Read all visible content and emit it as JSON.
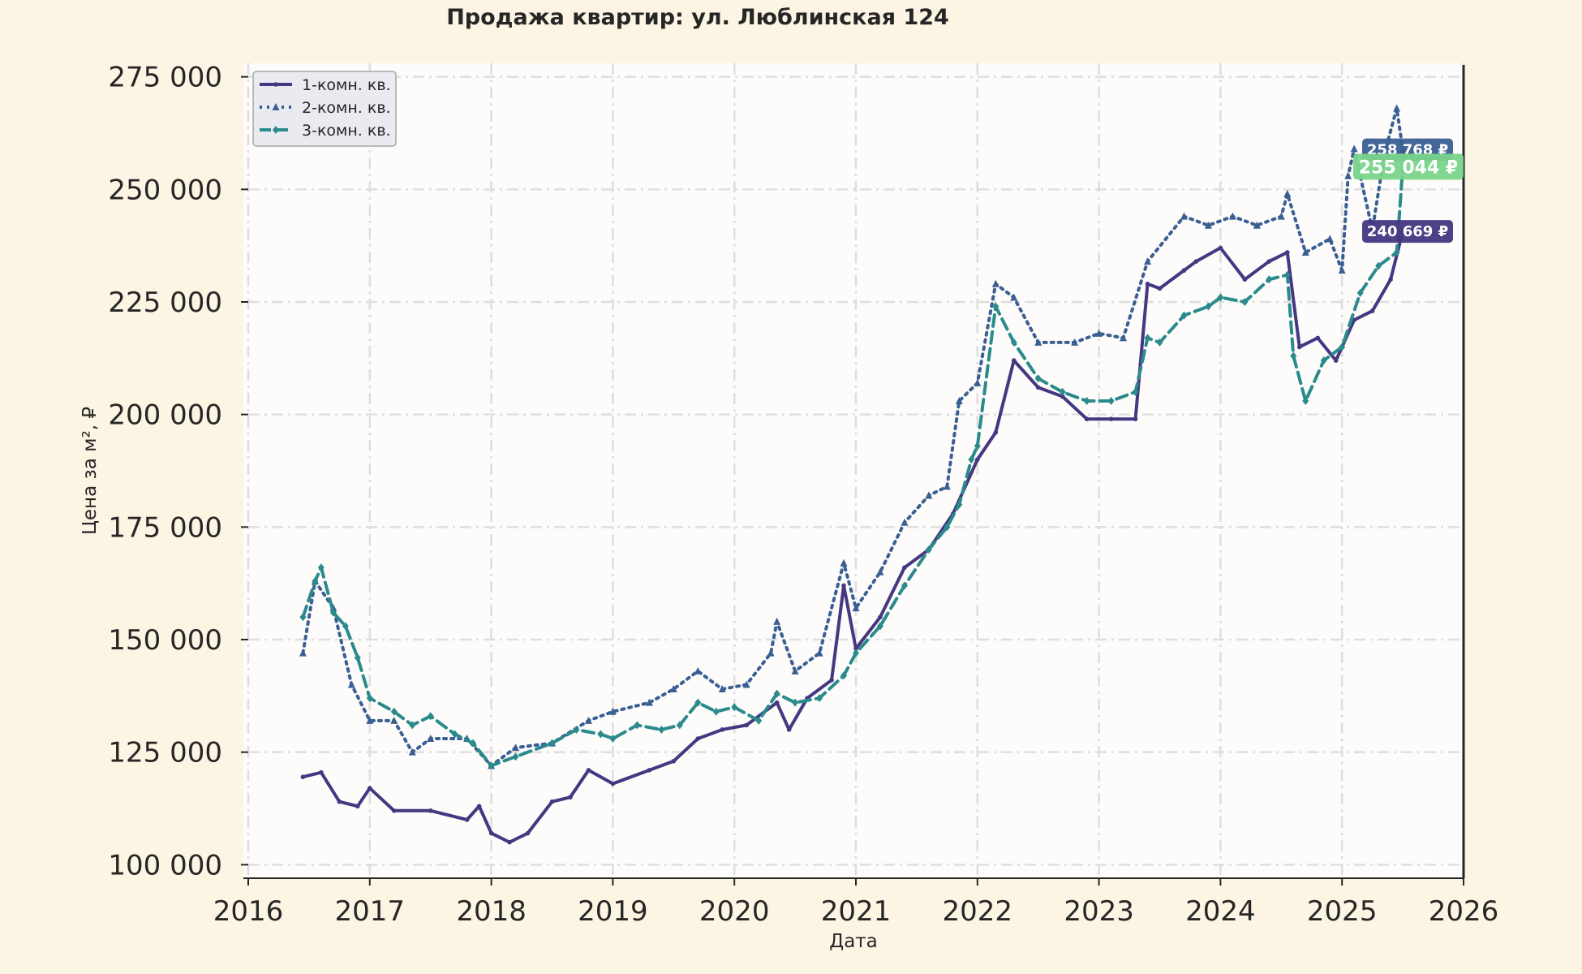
{
  "chart_data": {
    "type": "line",
    "title": "Продажа квартир: ул. Люблинская 124",
    "xlabel": "Дата",
    "ylabel": "Цена за м², ₽",
    "xlim": [
      2016.0,
      2026.0
    ],
    "ylim": [
      97000,
      278000
    ],
    "x_ticks": [
      "2016",
      "2017",
      "2018",
      "2019",
      "2020",
      "2021",
      "2022",
      "2023",
      "2024",
      "2025",
      "2026"
    ],
    "y_ticks": [
      "100 000",
      "125 000",
      "150 000",
      "175 000",
      "200 000",
      "225 000",
      "250 000",
      "275 000"
    ],
    "grid": true,
    "legend_position": "top-left",
    "series": [
      {
        "name": "1-комн. кв.",
        "color": "#453781",
        "line_style": "solid",
        "marker": "star",
        "end_label": "240 669 ₽",
        "x": [
          2016.45,
          2016.6,
          2016.75,
          2016.9,
          2017.0,
          2017.2,
          2017.5,
          2017.8,
          2017.9,
          2018.0,
          2018.15,
          2018.3,
          2018.5,
          2018.65,
          2018.8,
          2019.0,
          2019.3,
          2019.5,
          2019.7,
          2019.9,
          2020.1,
          2020.35,
          2020.45,
          2020.6,
          2020.8,
          2020.9,
          2021.0,
          2021.2,
          2021.4,
          2021.6,
          2021.8,
          2022.0,
          2022.15,
          2022.3,
          2022.5,
          2022.7,
          2022.9,
          2023.1,
          2023.3,
          2023.4,
          2023.5,
          2023.7,
          2023.8,
          2024.0,
          2024.2,
          2024.4,
          2024.55,
          2024.65,
          2024.8,
          2024.95,
          2025.1,
          2025.25,
          2025.4,
          2025.5
        ],
        "y": [
          119500,
          120500,
          114000,
          113000,
          117000,
          112000,
          112000,
          110000,
          113000,
          107000,
          105000,
          107000,
          114000,
          115000,
          121000,
          118000,
          121000,
          123000,
          128000,
          130000,
          131000,
          136000,
          130000,
          137000,
          141000,
          162000,
          148000,
          155000,
          166000,
          170000,
          178000,
          190000,
          196000,
          212000,
          206000,
          204000,
          199000,
          199000,
          199000,
          229000,
          228000,
          232000,
          234000,
          237000,
          230000,
          234000,
          236000,
          215000,
          217000,
          212000,
          221000,
          223000,
          230000,
          240669
        ]
      },
      {
        "name": "2-комн. кв.",
        "color": "#3a5f93",
        "line_style": "dotted",
        "marker": "triangle",
        "end_label": "258 768 ₽",
        "x": [
          2016.45,
          2016.55,
          2016.7,
          2016.85,
          2017.0,
          2017.2,
          2017.35,
          2017.5,
          2017.8,
          2018.0,
          2018.2,
          2018.5,
          2018.8,
          2019.0,
          2019.3,
          2019.5,
          2019.7,
          2019.9,
          2020.1,
          2020.3,
          2020.35,
          2020.5,
          2020.7,
          2020.9,
          2021.0,
          2021.2,
          2021.4,
          2021.6,
          2021.75,
          2021.85,
          2022.0,
          2022.15,
          2022.3,
          2022.5,
          2022.8,
          2023.0,
          2023.2,
          2023.4,
          2023.7,
          2023.9,
          2024.1,
          2024.3,
          2024.5,
          2024.55,
          2024.7,
          2024.9,
          2025.0,
          2025.05,
          2025.1,
          2025.25,
          2025.35,
          2025.45,
          2025.5
        ],
        "y": [
          147000,
          163000,
          157000,
          140000,
          132000,
          132000,
          125000,
          128000,
          128000,
          122000,
          126000,
          127000,
          132000,
          134000,
          136000,
          139000,
          143000,
          139000,
          140000,
          147000,
          154000,
          143000,
          147000,
          167000,
          157000,
          165000,
          176000,
          182000,
          184000,
          203000,
          207000,
          229000,
          226000,
          216000,
          216000,
          218000,
          217000,
          234000,
          244000,
          242000,
          244000,
          242000,
          244000,
          249000,
          236000,
          239000,
          232000,
          253000,
          259000,
          241000,
          258000,
          268000,
          258768
        ]
      },
      {
        "name": "3-комн. кв.",
        "color": "#2a8a8c",
        "line_style": "dashed",
        "marker": "diamond",
        "end_label": "255 044 ₽",
        "end_label_bg": "#7ad48a",
        "x": [
          2016.45,
          2016.55,
          2016.6,
          2016.7,
          2016.8,
          2016.9,
          2017.0,
          2017.2,
          2017.35,
          2017.5,
          2017.7,
          2017.85,
          2018.0,
          2018.2,
          2018.5,
          2018.7,
          2018.9,
          2019.0,
          2019.2,
          2019.4,
          2019.55,
          2019.7,
          2019.85,
          2020.0,
          2020.2,
          2020.35,
          2020.5,
          2020.7,
          2020.9,
          2021.0,
          2021.2,
          2021.4,
          2021.6,
          2021.75,
          2021.85,
          2021.95,
          2022.0,
          2022.15,
          2022.3,
          2022.5,
          2022.7,
          2022.9,
          2023.1,
          2023.3,
          2023.4,
          2023.5,
          2023.7,
          2023.9,
          2024.0,
          2024.2,
          2024.4,
          2024.55,
          2024.6,
          2024.7,
          2024.85,
          2025.0,
          2025.15,
          2025.3,
          2025.45,
          2025.5
        ],
        "y": [
          155000,
          163000,
          166000,
          156000,
          153000,
          146000,
          137000,
          134000,
          131000,
          133000,
          129000,
          127000,
          122000,
          124000,
          127000,
          130000,
          129000,
          128000,
          131000,
          130000,
          131000,
          136000,
          134000,
          135000,
          132000,
          138000,
          136000,
          137000,
          142000,
          147000,
          153000,
          162000,
          170000,
          175000,
          180000,
          190000,
          193000,
          224000,
          216000,
          208000,
          205000,
          203000,
          203000,
          205000,
          217000,
          216000,
          222000,
          224000,
          226000,
          225000,
          230000,
          231000,
          213000,
          203000,
          212000,
          215000,
          227000,
          233000,
          236000,
          255044
        ]
      }
    ]
  }
}
